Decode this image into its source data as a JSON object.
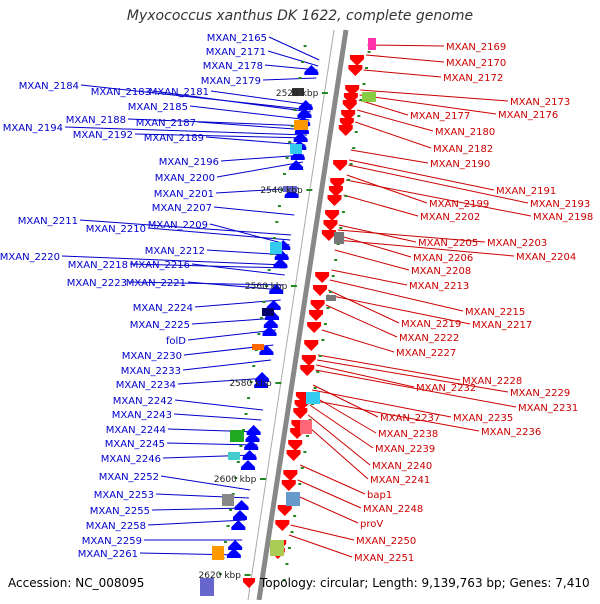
{
  "title": "Myxococcus xanthus DK 1622, complete genome",
  "footer": {
    "accession": "Accession: NC_008095",
    "topology": "Topology: circular; Length: 9,139,763 bp; Genes: 7,410"
  },
  "colors": {
    "left_label": "#0000cc",
    "right_label": "#cc0000",
    "backbone": "#888888",
    "tick": "#228822",
    "left_arrow": "#0000ff",
    "right_arrow": "#ff0000"
  },
  "kbp_marks": [
    "2520 kbp",
    "2540 kbp",
    "2560 kbp",
    "2580 kbp",
    "2600 kbp",
    "2620 kbp"
  ],
  "left_labels": [
    "MXAN_2165",
    "MXAN_2171",
    "MXAN_2178",
    "MXAN_2179",
    "MXAN_2184",
    "MXAN_2183",
    "MXAN_2181",
    "MXAN_2185",
    "MXAN_2188",
    "MXAN_2187",
    "MXAN_2194",
    "MXAN_2192",
    "MXAN_2189",
    "MXAN_2196",
    "MXAN_2200",
    "MXAN_2201",
    "MXAN_2207",
    "MXAN_2211",
    "MXAN_2210",
    "MXAN_2209",
    "MXAN_2212",
    "MXAN_2220",
    "MXAN_2218",
    "MXAN_2216",
    "MXAN_2223",
    "MXAN_2221",
    "MXAN_2224",
    "MXAN_2225",
    "folD",
    "MXAN_2230",
    "MXAN_2233",
    "MXAN_2234",
    "MXAN_2242",
    "MXAN_2243",
    "MXAN_2244",
    "MXAN_2245",
    "MXAN_2246",
    "MXAN_2252",
    "MXAN_2253",
    "MXAN_2255",
    "MXAN_2258",
    "MXAN_2259",
    "MXAN_2261"
  ],
  "right_labels": [
    "MXAN_2169",
    "MXAN_2170",
    "MXAN_2172",
    "MXAN_2173",
    "MXAN_2177",
    "MXAN_2176",
    "MXAN_2180",
    "MXAN_2182",
    "MXAN_2190",
    "MXAN_2191",
    "MXAN_2193",
    "MXAN_2199",
    "MXAN_2198",
    "MXAN_2202",
    "MXAN_2205",
    "MXAN_2203",
    "MXAN_2206",
    "MXAN_2204",
    "MXAN_2208",
    "MXAN_2213",
    "MXAN_2215",
    "MXAN_2219",
    "MXAN_2217",
    "MXAN_2222",
    "MXAN_2227",
    "MXAN_2228",
    "MXAN_2232",
    "MXAN_2229",
    "MXAN_2231",
    "MXAN_2237",
    "MXAN_2235",
    "MXAN_2238",
    "MXAN_2236",
    "MXAN_2239",
    "MXAN_2240",
    "MXAN_2241",
    "bap1",
    "MXAN_2248",
    "proV",
    "MXAN_2250",
    "MXAN_2251"
  ]
}
